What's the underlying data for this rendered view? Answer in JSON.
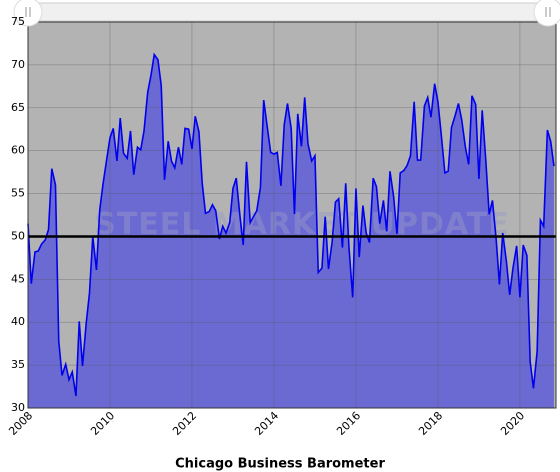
{
  "chart_data": {
    "type": "area",
    "title": "Chicago Business Barometer",
    "watermark": "STEEL MARKET UPDATE",
    "x": [
      2008.0,
      2008.08,
      2008.17,
      2008.25,
      2008.33,
      2008.42,
      2008.5,
      2008.58,
      2008.67,
      2008.75,
      2008.83,
      2008.92,
      2009.0,
      2009.08,
      2009.17,
      2009.25,
      2009.33,
      2009.42,
      2009.5,
      2009.58,
      2009.67,
      2009.75,
      2009.83,
      2009.92,
      2010.0,
      2010.08,
      2010.17,
      2010.25,
      2010.33,
      2010.42,
      2010.5,
      2010.58,
      2010.67,
      2010.75,
      2010.83,
      2010.92,
      2011.0,
      2011.08,
      2011.17,
      2011.25,
      2011.33,
      2011.42,
      2011.5,
      2011.58,
      2011.67,
      2011.75,
      2011.83,
      2011.92,
      2012.0,
      2012.08,
      2012.17,
      2012.25,
      2012.33,
      2012.42,
      2012.5,
      2012.58,
      2012.67,
      2012.75,
      2012.83,
      2012.92,
      2013.0,
      2013.08,
      2013.17,
      2013.25,
      2013.33,
      2013.42,
      2013.5,
      2013.58,
      2013.67,
      2013.75,
      2013.83,
      2013.92,
      2014.0,
      2014.08,
      2014.17,
      2014.25,
      2014.33,
      2014.42,
      2014.5,
      2014.58,
      2014.67,
      2014.75,
      2014.83,
      2014.92,
      2015.0,
      2015.08,
      2015.17,
      2015.25,
      2015.33,
      2015.42,
      2015.5,
      2015.58,
      2015.67,
      2015.75,
      2015.83,
      2015.92,
      2016.0,
      2016.08,
      2016.17,
      2016.25,
      2016.33,
      2016.42,
      2016.5,
      2016.58,
      2016.67,
      2016.75,
      2016.83,
      2016.92,
      2017.0,
      2017.08,
      2017.17,
      2017.25,
      2017.33,
      2017.42,
      2017.5,
      2017.58,
      2017.67,
      2017.75,
      2017.83,
      2017.92,
      2018.0,
      2018.08,
      2018.17,
      2018.25,
      2018.33,
      2018.42,
      2018.5,
      2018.58,
      2018.67,
      2018.75,
      2018.83,
      2018.92,
      2019.0,
      2019.08,
      2019.17,
      2019.25,
      2019.33,
      2019.42,
      2019.5,
      2019.58,
      2019.67,
      2019.75,
      2019.83,
      2019.92,
      2020.0,
      2020.08,
      2020.17,
      2020.25,
      2020.33,
      2020.42,
      2020.5,
      2020.58,
      2020.67,
      2020.75,
      2020.83
    ],
    "values": [
      51.5,
      44.5,
      48.2,
      48.3,
      49.1,
      49.6,
      50.8,
      57.9,
      56.0,
      37.8,
      33.8,
      35.1,
      33.3,
      34.2,
      31.4,
      40.1,
      34.9,
      39.9,
      43.4,
      50.0,
      46.1,
      53.1,
      56.1,
      59.0,
      61.5,
      62.6,
      58.8,
      63.8,
      59.7,
      59.1,
      62.3,
      57.2,
      60.4,
      60.1,
      62.3,
      66.8,
      68.8,
      71.2,
      70.6,
      67.6,
      56.6,
      61.1,
      58.8,
      58.0,
      60.4,
      58.4,
      62.6,
      62.5,
      60.2,
      64.0,
      62.2,
      56.2,
      52.7,
      52.9,
      53.7,
      53.0,
      49.7,
      51.2,
      50.4,
      51.6,
      55.6,
      56.8,
      52.4,
      49.0,
      58.7,
      51.6,
      52.3,
      53.0,
      55.7,
      65.9,
      63.0,
      59.8,
      59.6,
      59.8,
      55.9,
      63.0,
      65.5,
      62.6,
      52.6,
      64.3,
      60.5,
      66.2,
      60.8,
      58.8,
      59.4,
      45.8,
      46.3,
      52.3,
      46.2,
      49.4,
      54.0,
      54.4,
      48.7,
      56.2,
      48.7,
      42.9,
      55.6,
      47.6,
      53.6,
      50.4,
      49.3,
      56.8,
      55.8,
      51.5,
      54.2,
      50.6,
      57.6,
      54.6,
      50.3,
      57.4,
      57.7,
      58.3,
      59.4,
      65.7,
      58.9,
      58.9,
      65.2,
      66.2,
      63.9,
      67.8,
      65.7,
      61.9,
      57.4,
      57.6,
      62.7,
      64.1,
      65.5,
      63.6,
      60.4,
      58.4,
      66.4,
      65.4,
      56.7,
      64.7,
      58.7,
      52.6,
      54.2,
      49.7,
      44.4,
      50.4,
      47.1,
      43.2,
      46.3,
      48.9,
      42.9,
      49.0,
      47.8,
      35.4,
      32.3,
      36.6,
      51.9,
      51.2,
      62.4,
      61.1,
      58.2
    ],
    "color": "#0000ee",
    "fill_color": "#6a6ad2",
    "background": "#b3b3b3",
    "reference_line": 50,
    "xlim": [
      2008,
      2020.88
    ],
    "ylim": [
      30,
      75
    ],
    "xticks": [
      2008,
      2010,
      2012,
      2014,
      2016,
      2018,
      2020
    ],
    "yticks": [
      30,
      35,
      40,
      45,
      50,
      55,
      60,
      65,
      70,
      75
    ],
    "grid": true
  }
}
